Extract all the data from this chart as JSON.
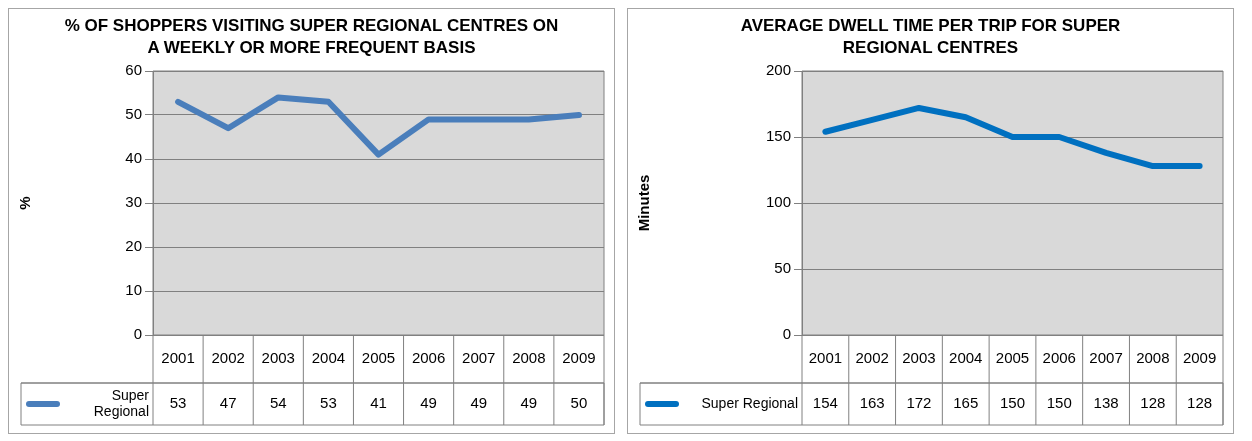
{
  "chart_data": [
    {
      "type": "line",
      "title": "% OF SHOPPERS VISITING  SUPER REGIONAL CENTRES ON A WEEKLY OR MORE FREQUENT BASIS",
      "ylabel": "%",
      "categories": [
        "2001",
        "2002",
        "2003",
        "2004",
        "2005",
        "2006",
        "2007",
        "2008",
        "2009"
      ],
      "series": [
        {
          "name": "Super Regional",
          "color": "#4a7ebb",
          "values": [
            53,
            47,
            54,
            53,
            41,
            49,
            49,
            49,
            50
          ]
        }
      ],
      "ylim": [
        0,
        60
      ],
      "yticks": [
        0,
        10,
        20,
        30,
        40,
        50,
        60
      ],
      "grid": "y",
      "legend": "bottom",
      "data_labels": true,
      "marker": "none"
    },
    {
      "type": "line",
      "title": "AVERAGE DWELL TIME  PER TRIP FOR SUPER REGIONAL CENTRES",
      "ylabel": "Minutes",
      "categories": [
        "2001",
        "2002",
        "2003",
        "2004",
        "2005",
        "2006",
        "2007",
        "2008",
        "2009"
      ],
      "series": [
        {
          "name": "Super Regional",
          "color": "#0070c0",
          "values": [
            154,
            163,
            172,
            165,
            150,
            150,
            138,
            128,
            128
          ]
        }
      ],
      "ylim": [
        0,
        200
      ],
      "yticks": [
        0,
        50,
        100,
        150,
        200
      ],
      "grid": "y",
      "legend": "bottom",
      "data_labels": true,
      "marker": "none"
    }
  ]
}
